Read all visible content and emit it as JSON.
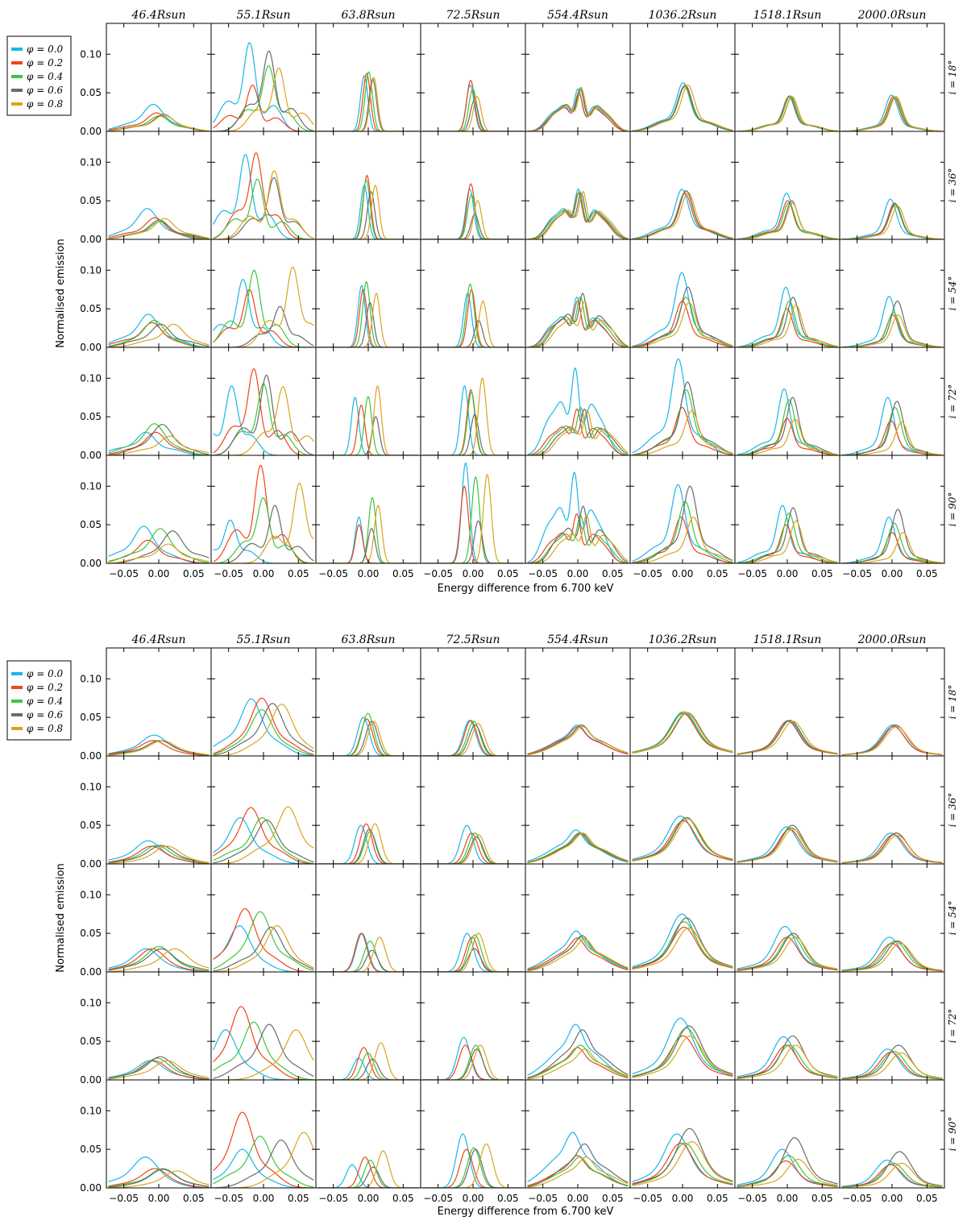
{
  "figure": {
    "column_titles": [
      "46.4Rsun",
      "55.1Rsun",
      "63.8Rsun",
      "72.5Rsun",
      "554.4Rsun",
      "1036.2Rsun",
      "1518.1Rsun",
      "2000.0Rsun"
    ],
    "row_labels": [
      "i = 18°",
      "i = 36°",
      "i = 54°",
      "i = 72°",
      "i = 90°"
    ],
    "xlabel": "Energy difference from 6.700 keV",
    "ylabel": "Normalised emission",
    "xtick_labels": [
      "−0.05",
      "0.00",
      "0.05"
    ],
    "ytick_labels": [
      "0.00",
      "0.05",
      "0.10"
    ],
    "legend": [
      "φ = 0.0",
      "φ = 0.2",
      "φ = 0.4",
      "φ = 0.6",
      "φ = 0.8"
    ]
  },
  "colors": {
    "phi_0_0": "#1ab6e8",
    "phi_0_2": "#f0431a",
    "phi_0_4": "#3cc63c",
    "phi_0_6": "#6b6b6b",
    "phi_0_8": "#dba41c"
  },
  "chart_data": [
    {
      "type": "line",
      "panel": "top",
      "xlim": [
        -0.075,
        0.075
      ],
      "ylim": [
        0,
        0.14
      ],
      "xticks": [
        -0.05,
        0.0,
        0.05
      ],
      "yticks": [
        0.0,
        0.05,
        0.1
      ],
      "grid": false,
      "legend_placement": "left-outside",
      "series": [
        {
          "name": "φ = 0.0",
          "peaks": [
            [
              0.035,
              0.115,
              0.072,
              0.06,
              0.055,
              0.063,
              0.045,
              0.047
            ],
            [
              0.04,
              0.11,
              0.07,
              0.065,
              0.065,
              0.065,
              0.06,
              0.052
            ],
            [
              0.043,
              0.088,
              0.08,
              0.07,
              0.065,
              0.097,
              0.078,
              0.066
            ],
            [
              0.03,
              0.09,
              0.075,
              0.09,
              0.113,
              0.125,
              0.086,
              0.075
            ],
            [
              0.048,
              0.056,
              0.06,
              0.13,
              0.118,
              0.102,
              0.075,
              0.06
            ]
          ]
        },
        {
          "name": "φ = 0.2",
          "peaks": [
            [
              0.024,
              0.06,
              0.075,
              0.066,
              0.05,
              0.058,
              0.046,
              0.045
            ],
            [
              0.028,
              0.112,
              0.083,
              0.072,
              0.06,
              0.06,
              0.05,
              0.047
            ],
            [
              0.032,
              0.075,
              0.075,
              0.075,
              0.06,
              0.06,
              0.05,
              0.042
            ],
            [
              0.03,
              0.112,
              0.065,
              0.085,
              0.06,
              0.062,
              0.048,
              0.045
            ],
            [
              0.03,
              0.127,
              0.05,
              0.1,
              0.064,
              0.06,
              0.05,
              0.04
            ]
          ]
        },
        {
          "name": "φ = 0.4",
          "peaks": [
            [
              0.02,
              0.085,
              0.077,
              0.055,
              0.057,
              0.058,
              0.046,
              0.044
            ],
            [
              0.023,
              0.078,
              0.077,
              0.058,
              0.062,
              0.063,
              0.047,
              0.044
            ],
            [
              0.035,
              0.1,
              0.085,
              0.082,
              0.065,
              0.065,
              0.06,
              0.045
            ],
            [
              0.041,
              0.093,
              0.076,
              0.082,
              0.062,
              0.085,
              0.072,
              0.062
            ],
            [
              0.045,
              0.085,
              0.085,
              0.112,
              0.062,
              0.08,
              0.065,
              0.052
            ]
          ]
        },
        {
          "name": "φ = 0.6",
          "peaks": [
            [
              0.022,
              0.104,
              0.068,
              0.04,
              0.055,
              0.06,
              0.045,
              0.045
            ],
            [
              0.025,
              0.08,
              0.062,
              0.033,
              0.06,
              0.063,
              0.05,
              0.046
            ],
            [
              0.03,
              0.053,
              0.058,
              0.035,
              0.07,
              0.078,
              0.065,
              0.06
            ],
            [
              0.04,
              0.104,
              0.05,
              0.053,
              0.06,
              0.095,
              0.075,
              0.07
            ],
            [
              0.042,
              0.075,
              0.045,
              0.055,
              0.074,
              0.1,
              0.072,
              0.07
            ]
          ]
        },
        {
          "name": "φ = 0.8",
          "peaks": [
            [
              0.021,
              0.082,
              0.07,
              0.045,
              0.055,
              0.06,
              0.045,
              0.045
            ],
            [
              0.027,
              0.089,
              0.07,
              0.05,
              0.062,
              0.061,
              0.047,
              0.043
            ],
            [
              0.03,
              0.104,
              0.07,
              0.06,
              0.06,
              0.058,
              0.055,
              0.042
            ],
            [
              0.025,
              0.089,
              0.09,
              0.1,
              0.058,
              0.058,
              0.047,
              0.043
            ],
            [
              0.025,
              0.104,
              0.075,
              0.115,
              0.062,
              0.06,
              0.055,
              0.04
            ]
          ]
        }
      ]
    },
    {
      "type": "line",
      "panel": "bottom",
      "xlim": [
        -0.075,
        0.075
      ],
      "ylim": [
        0,
        0.14
      ],
      "xticks": [
        -0.05,
        0.0,
        0.05
      ],
      "yticks": [
        0.0,
        0.05,
        0.1
      ],
      "grid": false,
      "legend_placement": "left-outside",
      "series": [
        {
          "name": "φ = 0.0",
          "peaks": [
            [
              0.027,
              0.074,
              0.05,
              0.046,
              0.04,
              0.057,
              0.046,
              0.04
            ],
            [
              0.03,
              0.06,
              0.05,
              0.05,
              0.044,
              0.062,
              0.048,
              0.04
            ],
            [
              0.03,
              0.06,
              0.05,
              0.05,
              0.053,
              0.075,
              0.059,
              0.045
            ],
            [
              0.025,
              0.065,
              0.028,
              0.055,
              0.072,
              0.08,
              0.056,
              0.04
            ],
            [
              0.04,
              0.05,
              0.03,
              0.07,
              0.072,
              0.07,
              0.05,
              0.036
            ]
          ]
        },
        {
          "name": "φ = 0.2",
          "peaks": [
            [
              0.02,
              0.075,
              0.048,
              0.046,
              0.038,
              0.055,
              0.045,
              0.038
            ],
            [
              0.023,
              0.073,
              0.052,
              0.04,
              0.04,
              0.056,
              0.045,
              0.038
            ],
            [
              0.03,
              0.082,
              0.05,
              0.045,
              0.044,
              0.058,
              0.045,
              0.037
            ],
            [
              0.025,
              0.095,
              0.042,
              0.045,
              0.042,
              0.057,
              0.045,
              0.036
            ],
            [
              0.025,
              0.098,
              0.04,
              0.05,
              0.042,
              0.058,
              0.035,
              0.03
            ]
          ]
        },
        {
          "name": "φ = 0.4",
          "peaks": [
            [
              0.02,
              0.06,
              0.055,
              0.045,
              0.04,
              0.057,
              0.046,
              0.04
            ],
            [
              0.024,
              0.06,
              0.042,
              0.04,
              0.04,
              0.06,
              0.047,
              0.04
            ],
            [
              0.033,
              0.078,
              0.04,
              0.048,
              0.045,
              0.065,
              0.048,
              0.04
            ],
            [
              0.028,
              0.075,
              0.035,
              0.045,
              0.045,
              0.067,
              0.045,
              0.037
            ],
            [
              0.025,
              0.067,
              0.036,
              0.052,
              0.04,
              0.058,
              0.042,
              0.032
            ]
          ]
        },
        {
          "name": "φ = 0.6",
          "peaks": [
            [
              0.02,
              0.068,
              0.045,
              0.04,
              0.04,
              0.056,
              0.046,
              0.04
            ],
            [
              0.024,
              0.057,
              0.045,
              0.035,
              0.04,
              0.06,
              0.05,
              0.04
            ],
            [
              0.03,
              0.058,
              0.028,
              0.03,
              0.047,
              0.07,
              0.05,
              0.04
            ],
            [
              0.03,
              0.072,
              0.027,
              0.04,
              0.065,
              0.07,
              0.057,
              0.045
            ],
            [
              0.024,
              0.062,
              0.027,
              0.05,
              0.057,
              0.077,
              0.065,
              0.047
            ]
          ]
        },
        {
          "name": "φ = 0.8",
          "peaks": [
            [
              0.02,
              0.067,
              0.045,
              0.042,
              0.038,
              0.056,
              0.045,
              0.038
            ],
            [
              0.023,
              0.074,
              0.052,
              0.038,
              0.04,
              0.058,
              0.045,
              0.037
            ],
            [
              0.03,
              0.06,
              0.045,
              0.05,
              0.043,
              0.057,
              0.045,
              0.037
            ],
            [
              0.025,
              0.065,
              0.048,
              0.045,
              0.04,
              0.057,
              0.045,
              0.035
            ],
            [
              0.022,
              0.072,
              0.048,
              0.057,
              0.04,
              0.06,
              0.037,
              0.032
            ]
          ]
        }
      ]
    }
  ]
}
